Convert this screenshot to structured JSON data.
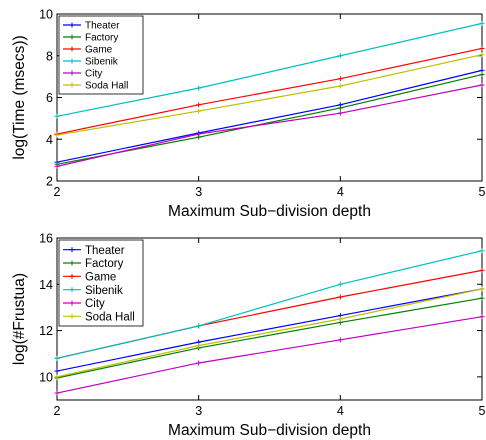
{
  "chart_data": [
    {
      "type": "line",
      "title": "",
      "xlabel": "Maximum Sub−division depth",
      "ylabel": "log(Time (msecs))",
      "x": [
        2,
        3,
        4,
        5
      ],
      "xlim": [
        2,
        5
      ],
      "ylim": [
        2,
        10
      ],
      "xticks": [
        2,
        3,
        4,
        5
      ],
      "yticks": [
        2,
        4,
        6,
        8,
        10
      ],
      "grid": false,
      "legend_position": "top-left",
      "series": [
        {
          "name": "Theater",
          "color": "#0000ff",
          "values": [
            2.9,
            4.3,
            5.65,
            7.3
          ]
        },
        {
          "name": "Factory",
          "color": "#008000",
          "values": [
            2.8,
            4.1,
            5.5,
            7.1
          ]
        },
        {
          "name": "Game",
          "color": "#ff0000",
          "values": [
            4.25,
            5.65,
            6.9,
            8.35
          ]
        },
        {
          "name": "Sibenik",
          "color": "#00bfbf",
          "values": [
            5.1,
            6.45,
            8.0,
            9.55
          ]
        },
        {
          "name": "City",
          "color": "#bf00bf",
          "values": [
            2.7,
            4.25,
            5.25,
            6.6
          ]
        },
        {
          "name": "Soda Hall",
          "color": "#bfbf00",
          "values": [
            4.2,
            5.35,
            6.55,
            8.05
          ]
        }
      ]
    },
    {
      "type": "line",
      "title": "",
      "xlabel": "Maximum Sub−division depth",
      "ylabel": "log(#Frustua)",
      "x": [
        2,
        3,
        4,
        5
      ],
      "xlim": [
        2,
        5
      ],
      "ylim": [
        9,
        16
      ],
      "xticks": [
        2,
        3,
        4,
        5
      ],
      "yticks": [
        10,
        12,
        14,
        16
      ],
      "grid": false,
      "legend_position": "top-left",
      "series": [
        {
          "name": "Theater",
          "color": "#0000ff",
          "values": [
            10.25,
            11.5,
            12.65,
            13.8
          ]
        },
        {
          "name": "Factory",
          "color": "#008000",
          "values": [
            9.95,
            11.25,
            12.35,
            13.4
          ]
        },
        {
          "name": "Game",
          "color": "#ff0000",
          "values": [
            10.8,
            12.2,
            13.45,
            14.6
          ]
        },
        {
          "name": "Sibenik",
          "color": "#00bfbf",
          "values": [
            10.8,
            12.2,
            14.0,
            15.45
          ]
        },
        {
          "name": "City",
          "color": "#bf00bf",
          "values": [
            9.3,
            10.6,
            11.6,
            12.6
          ]
        },
        {
          "name": "Soda Hall",
          "color": "#bfbf00",
          "values": [
            10.0,
            11.35,
            12.5,
            13.8
          ]
        }
      ]
    }
  ]
}
